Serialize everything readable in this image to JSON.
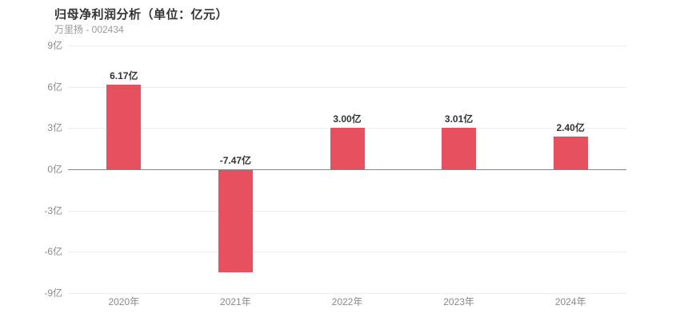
{
  "header": {
    "title": "归母净利润分析（单位：亿元）",
    "subtitle": "万里扬 - 002434"
  },
  "chart_data": {
    "type": "bar",
    "title": "归母净利润分析（单位：亿元）",
    "subtitle": "万里扬 - 002434",
    "categories": [
      "2020年",
      "2021年",
      "2022年",
      "2023年",
      "2024年"
    ],
    "values": [
      6.17,
      -7.47,
      3.0,
      3.01,
      2.4
    ],
    "value_labels": [
      "6.17亿",
      "-7.47亿",
      "3.00亿",
      "3.01亿",
      "2.40亿"
    ],
    "unit": "亿",
    "y_ticks": [
      9,
      6,
      3,
      0,
      -3,
      -6,
      -9
    ],
    "y_tick_labels": [
      "9亿",
      "6亿",
      "3亿",
      "0亿",
      "-3亿",
      "-6亿",
      "-9亿"
    ],
    "ylim": [
      -9,
      9
    ],
    "grid": true,
    "legend": "none",
    "colors": {
      "bar": "#e6505f",
      "gridline": "#ededed",
      "zero_line": "#888888",
      "axis_label": "#8a8a8a",
      "value_label": "#333333",
      "title": "#333333",
      "subtitle": "#999999",
      "background": "#ffffff"
    }
  }
}
